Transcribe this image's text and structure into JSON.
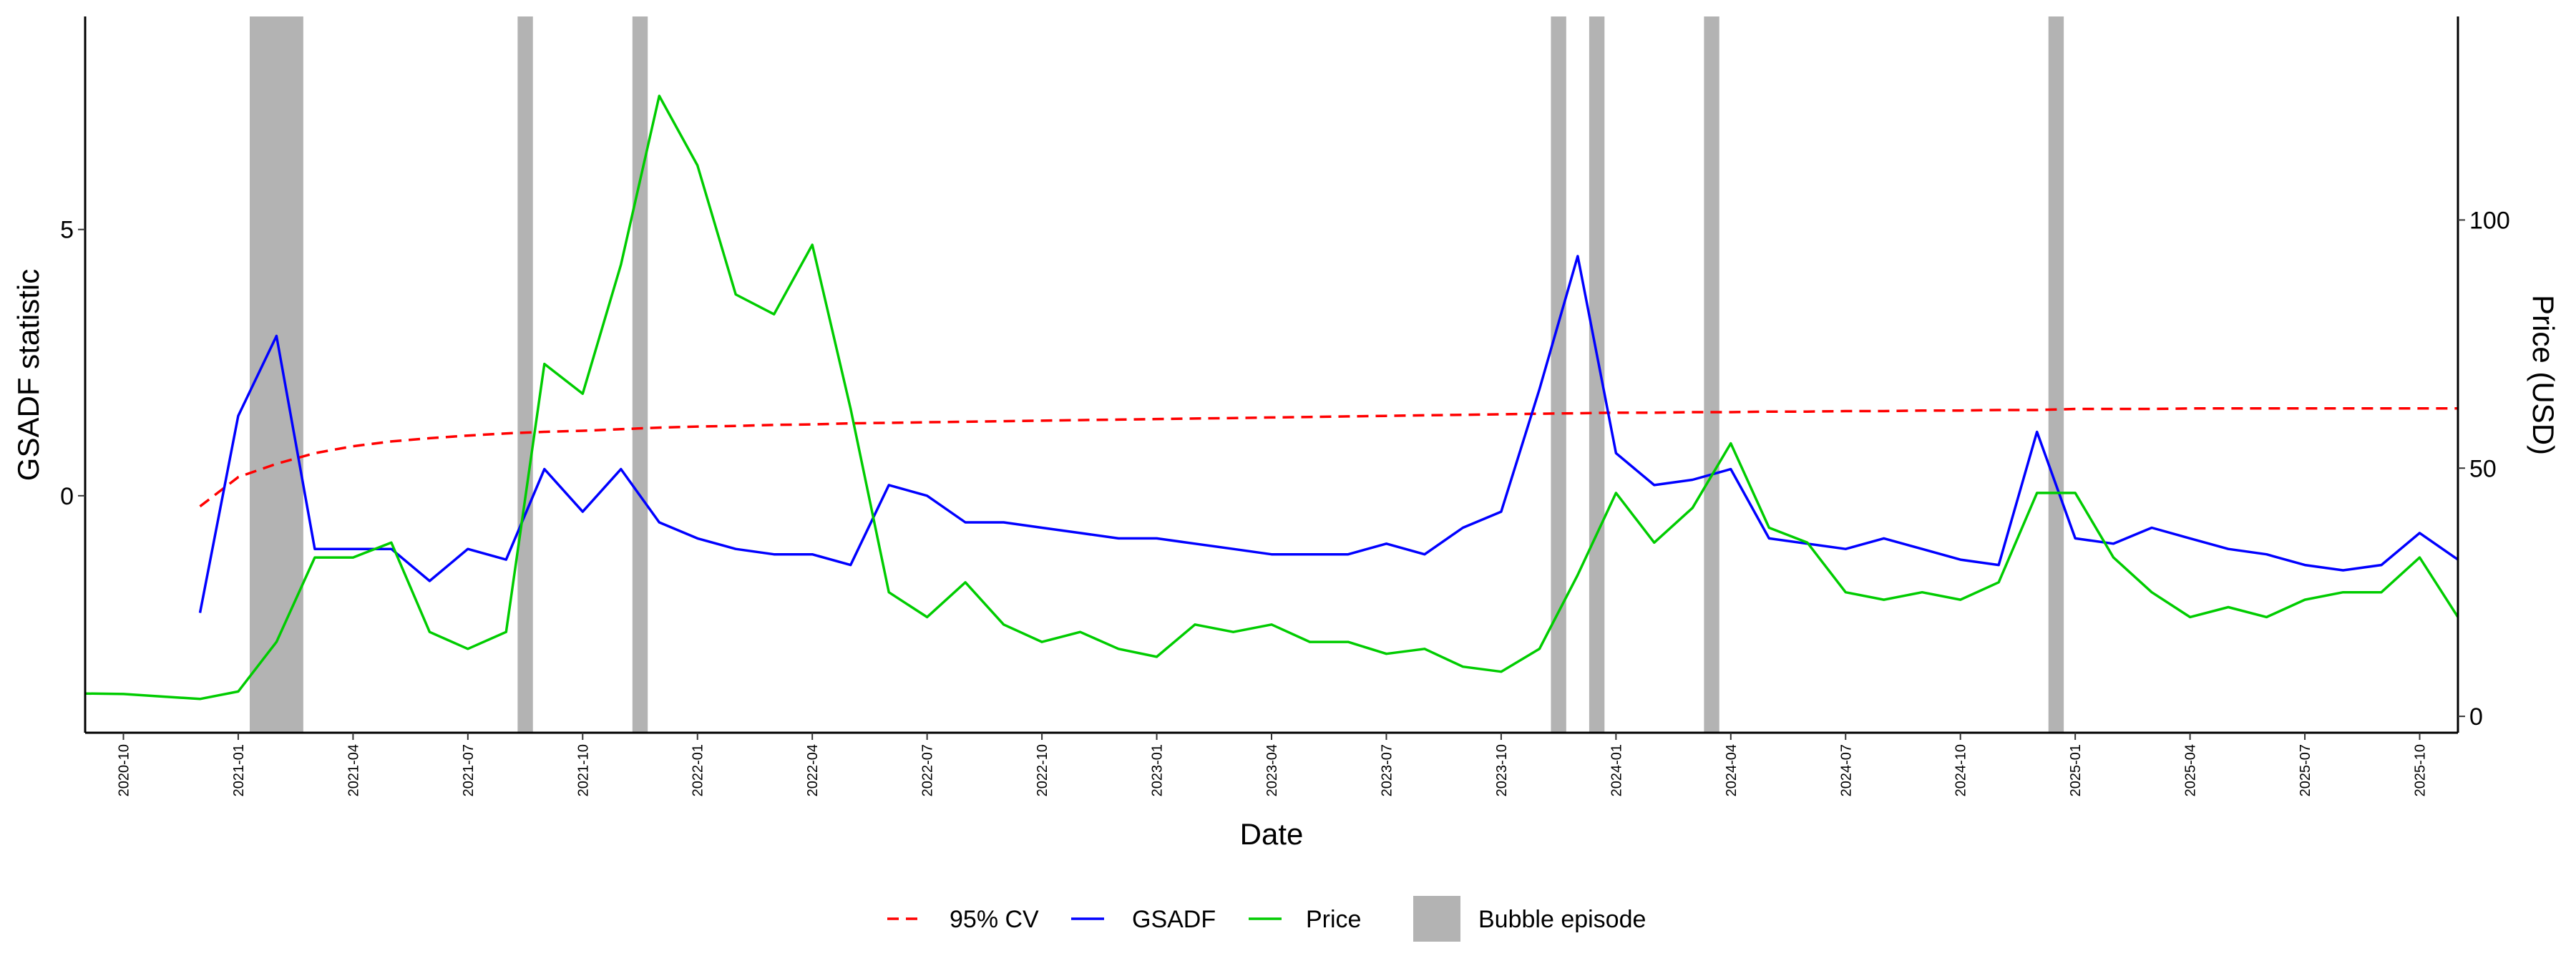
{
  "chart_data": {
    "type": "line",
    "x_label": "Date",
    "y_label": "GSADF statistic",
    "y2_label": "Price (USD)",
    "x": [
      "2020-09",
      "2020-10",
      "2020-11",
      "2020-12",
      "2021-01",
      "2021-02",
      "2021-03",
      "2021-04",
      "2021-05",
      "2021-06",
      "2021-07",
      "2021-08",
      "2021-09",
      "2021-10",
      "2021-11",
      "2021-12",
      "2022-01",
      "2022-02",
      "2022-03",
      "2022-04",
      "2022-05",
      "2022-06",
      "2022-07",
      "2022-08",
      "2022-09",
      "2022-10",
      "2022-11",
      "2022-12",
      "2023-01",
      "2023-02",
      "2023-03",
      "2023-04",
      "2023-05",
      "2023-06",
      "2023-07",
      "2023-08",
      "2023-09",
      "2023-10",
      "2023-11",
      "2023-12",
      "2024-01",
      "2024-02",
      "2024-03",
      "2024-04",
      "2024-05",
      "2024-06",
      "2024-07",
      "2024-08",
      "2024-09",
      "2024-10",
      "2024-11",
      "2024-12",
      "2025-01",
      "2025-02",
      "2025-03",
      "2025-04",
      "2025-05",
      "2025-06",
      "2025-07",
      "2025-08",
      "2025-09",
      "2025-10",
      "2025-11"
    ],
    "series": [
      {
        "name": "95% CV",
        "color": "#ff0000",
        "line_style": "dashed",
        "axis": "y",
        "values": [
          null,
          null,
          null,
          -0.2,
          0.35,
          0.6,
          0.8,
          0.93,
          1.02,
          1.08,
          1.13,
          1.17,
          1.2,
          1.22,
          1.25,
          1.28,
          1.3,
          1.31,
          1.33,
          1.34,
          1.36,
          1.37,
          1.38,
          1.39,
          1.4,
          1.41,
          1.42,
          1.43,
          1.44,
          1.45,
          1.46,
          1.47,
          1.48,
          1.49,
          1.5,
          1.51,
          1.52,
          1.53,
          1.54,
          1.55,
          1.56,
          1.56,
          1.57,
          1.57,
          1.58,
          1.58,
          1.59,
          1.59,
          1.6,
          1.6,
          1.61,
          1.61,
          1.63,
          1.63,
          1.63,
          1.64,
          1.64,
          1.64,
          1.64,
          1.64,
          1.64,
          1.64,
          1.64
        ]
      },
      {
        "name": "GSADF",
        "color": "#0000ff",
        "line_style": "solid",
        "axis": "y",
        "values": [
          null,
          null,
          null,
          -2.2,
          1.5,
          3.0,
          -1.0,
          -1.0,
          -1.0,
          -1.6,
          -1.0,
          -1.2,
          0.5,
          -0.3,
          0.5,
          -0.5,
          -0.8,
          -1.0,
          -1.1,
          -1.1,
          -1.3,
          0.2,
          0,
          -0.5,
          -0.5,
          -0.6,
          -0.7,
          -0.8,
          -0.8,
          -0.9,
          -1.0,
          -1.1,
          -1.1,
          -1.1,
          -0.9,
          -1.1,
          -0.6,
          -0.3,
          2.0,
          4.5,
          0.8,
          0.2,
          0.3,
          0.5,
          -0.8,
          -0.9,
          -1.0,
          -0.8,
          -1.0,
          -1.2,
          -1.3,
          1.2,
          -0.8,
          -0.9,
          -0.6,
          -0.8,
          -1.0,
          -1.1,
          -1.3,
          -1.4,
          -1.3,
          -0.7,
          -1.2
        ]
      },
      {
        "name": "Price",
        "color": "#00cc00",
        "line_style": "solid",
        "axis": "y2",
        "values": [
          4.6,
          4.5,
          4,
          3.5,
          5,
          15,
          32,
          32,
          35,
          17,
          13.6,
          17,
          71,
          65,
          91,
          125,
          111,
          85,
          81,
          95,
          62,
          25,
          20,
          27,
          18.5,
          15,
          17,
          13.6,
          12,
          18.5,
          17,
          18.5,
          15,
          15,
          12.6,
          13.6,
          10,
          9,
          13.6,
          28.5,
          45,
          35,
          42,
          55,
          38,
          35,
          25,
          23.5,
          25,
          23.5,
          27,
          45,
          45,
          32,
          25,
          20,
          22,
          20,
          23.5,
          25,
          25,
          32,
          20
        ]
      }
    ],
    "bubble_label": "Bubble episode",
    "bubble_color": "#b3b3b3",
    "bubble_episodes": [
      {
        "start": "2021-01",
        "end": "2021-02"
      },
      {
        "start": "2021-08",
        "end": "2021-08"
      },
      {
        "start": "2021-11",
        "end": "2021-11"
      },
      {
        "start": "2023-11",
        "end": "2023-11"
      },
      {
        "start": "2023-12",
        "end": "2023-12"
      },
      {
        "start": "2024-03",
        "end": "2024-03"
      },
      {
        "start": "2024-12",
        "end": "2024-12"
      }
    ],
    "xlim": [
      "2020-09",
      "2025-11"
    ],
    "xticks": [
      "2020-10",
      "2021-01",
      "2021-04",
      "2021-07",
      "2021-10",
      "2022-01",
      "2022-04",
      "2022-07",
      "2022-10",
      "2023-01",
      "2023-04",
      "2023-07",
      "2023-10",
      "2024-01",
      "2024-04",
      "2024-07",
      "2024-10",
      "2025-01",
      "2025-04",
      "2025-07",
      "2025-10"
    ],
    "ylim": [
      -4.45,
      9.0
    ],
    "yticks": [
      0,
      5
    ],
    "y2lim": [
      -3.3,
      141
    ],
    "y2ticks": [
      0,
      50,
      100
    ],
    "grid": false,
    "legend": "bottom"
  }
}
